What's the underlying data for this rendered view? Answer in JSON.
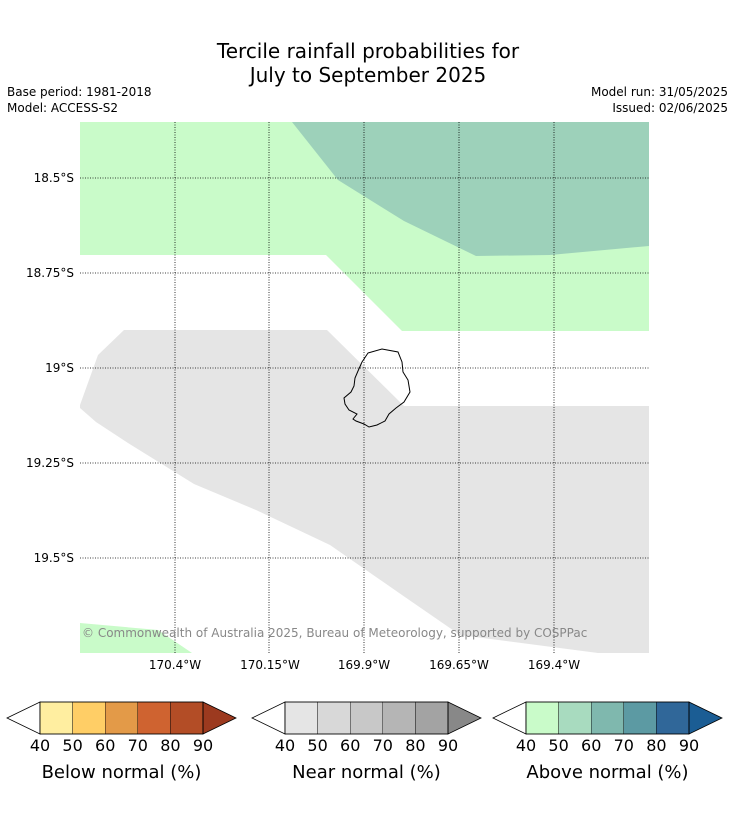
{
  "title": {
    "line1": "Tercile rainfall probabilities for",
    "line2": "July to September 2025"
  },
  "meta": {
    "base_period": "Base period: 1981-2018",
    "model": "Model: ACCESS-S2",
    "model_run": "Model run: 31/05/2025",
    "issued": "Issued: 02/06/2025"
  },
  "map": {
    "lat_labels": [
      "18.5°S",
      "18.75°S",
      "19°S",
      "19.25°S",
      "19.5°S"
    ],
    "lon_labels": [
      "170.4°W",
      "170.15°W",
      "169.9°W",
      "169.65°W",
      "169.4°W"
    ],
    "copyright": "© Commonwealth of Australia 2025, Bureau of Meteorology, supported by COSPPac",
    "colors": {
      "above_50": "#c9fbc9",
      "above_60": "#9dd1ba",
      "near_50": "#e5e5e5",
      "coast": "#000000"
    }
  },
  "legends": [
    {
      "title": "Below normal (%)",
      "ticks": [
        "40",
        "50",
        "60",
        "70",
        "80",
        "90"
      ],
      "colors": [
        "#ffeea0",
        "#ffce66",
        "#e39a48",
        "#cf6330",
        "#b34d26",
        "#9c3a1f"
      ]
    },
    {
      "title": "Near normal (%)",
      "ticks": [
        "40",
        "50",
        "60",
        "70",
        "80",
        "90"
      ],
      "colors": [
        "#e5e5e5",
        "#d8d8d8",
        "#c8c8c8",
        "#b5b5b5",
        "#a3a3a3",
        "#888888"
      ]
    },
    {
      "title": "Above normal (%)",
      "ticks": [
        "40",
        "50",
        "60",
        "70",
        "80",
        "90"
      ],
      "colors": [
        "#c9fbc9",
        "#a8dbbf",
        "#7fb8ae",
        "#5c9aa3",
        "#306799",
        "#1b5d94"
      ]
    }
  ]
}
